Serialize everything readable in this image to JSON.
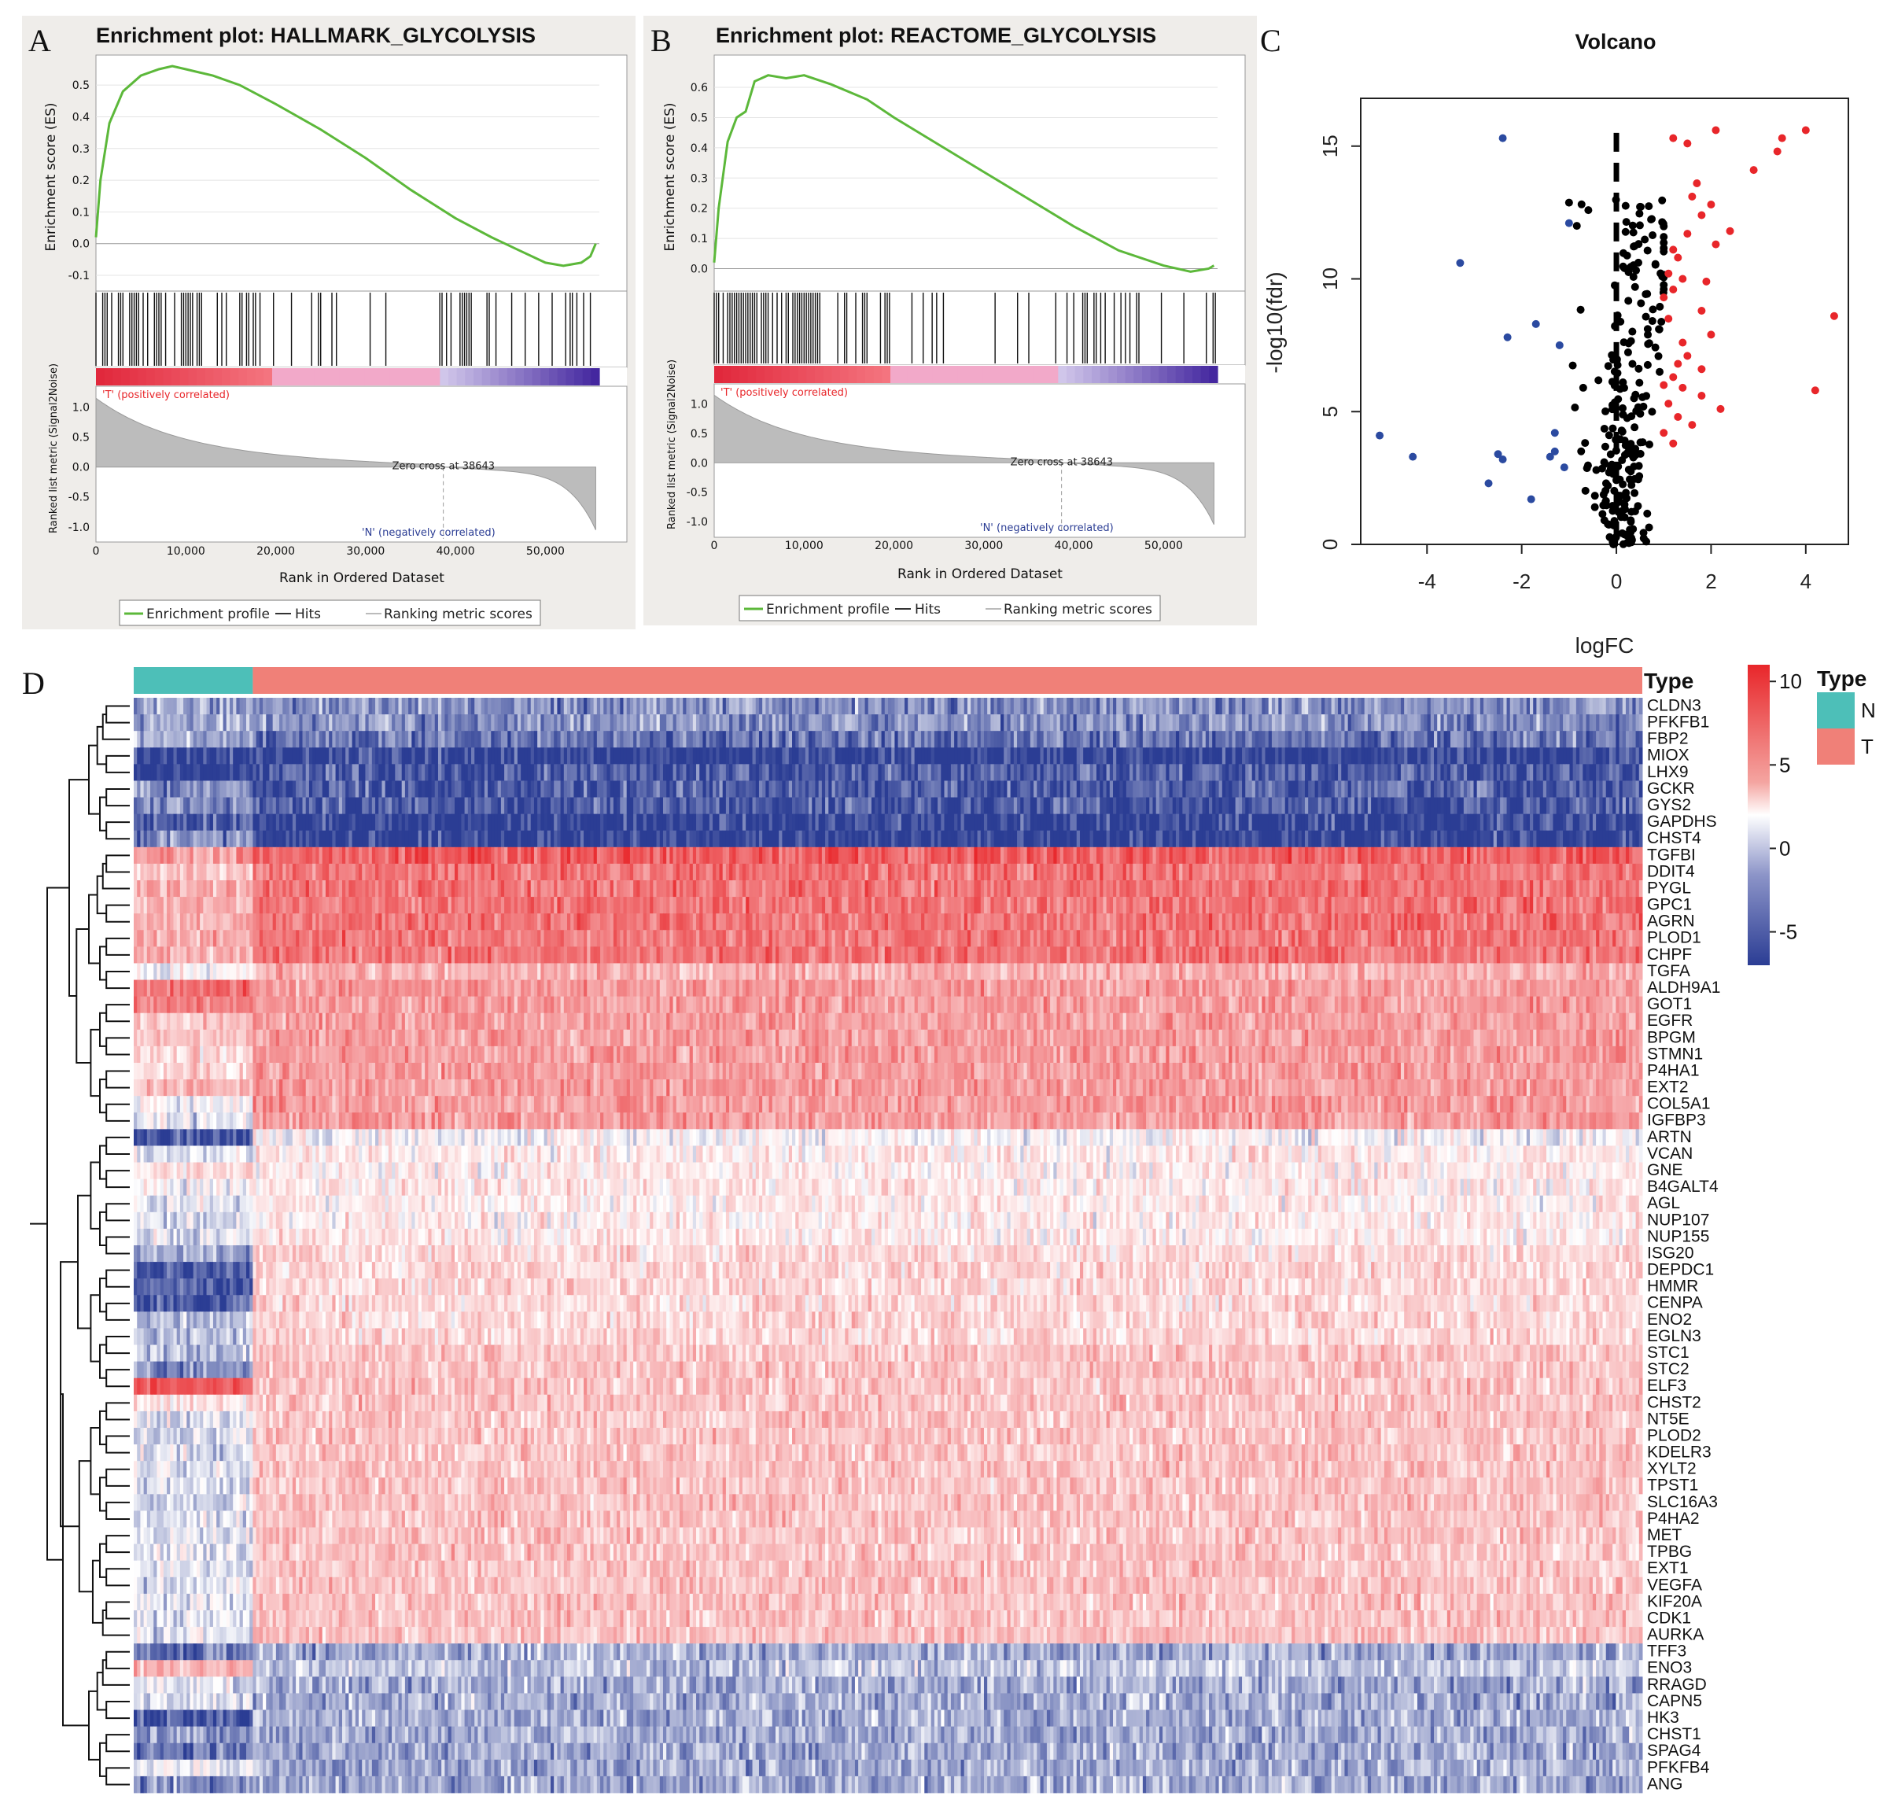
{
  "colors": {
    "enrich_line": "#5cb83a",
    "hit": "#111111",
    "panel_bg": "#efedea",
    "volcano_up": "#e8262a",
    "volcano_down": "#2b4aa0",
    "volcano_ns": "#000000",
    "heat_high": "#e8262a",
    "heat_mid": "#ffffff",
    "heat_low": "#2b3d94",
    "type_N": "#4dbfb8",
    "type_T": "#f08078"
  },
  "chart_data": [
    {
      "panel": "A",
      "type": "line",
      "title": "Enrichment plot: HALLMARK_GLYCOLYSIS",
      "ylabel_top": "Enrichment score (ES)",
      "ylabel_bottom": "Ranked list metric (Signal2Noise)",
      "xlabel": "Rank in Ordered Dataset",
      "es_yticks": [
        "0.5",
        "0.4",
        "0.3",
        "0.2",
        "0.1",
        "0.0",
        "-0.1"
      ],
      "es_ylim": [
        -0.1,
        0.55
      ],
      "metric_yticks": [
        "1.0",
        "0.5",
        "0.0",
        "-0.5",
        "-1.0"
      ],
      "metric_ylim": [
        -1.2,
        1.1
      ],
      "xticks": [
        "0",
        "10,000",
        "20,000",
        "30,000",
        "40,000",
        "50,000"
      ],
      "xlim": [
        0,
        56000
      ],
      "es_x": [
        0,
        500,
        1500,
        3000,
        5000,
        7000,
        8500,
        10000,
        13000,
        16000,
        20000,
        25000,
        30000,
        35000,
        40000,
        44000,
        47000,
        50000,
        52000,
        54000,
        55000,
        55600
      ],
      "es_y": [
        0.02,
        0.2,
        0.38,
        0.48,
        0.53,
        0.55,
        0.56,
        0.55,
        0.53,
        0.5,
        0.44,
        0.36,
        0.27,
        0.17,
        0.08,
        0.02,
        -0.02,
        -0.06,
        -0.07,
        -0.06,
        -0.04,
        0.0
      ],
      "pos_label": "'T' (positively correlated)",
      "neg_label": "'N' (negatively correlated)",
      "zero_cross_label": "Zero cross at 38643",
      "zero_cross": 38643,
      "legend": [
        "Enrichment profile",
        "Hits",
        "Ranking metric scores"
      ]
    },
    {
      "panel": "B",
      "type": "line",
      "title": "Enrichment plot: REACTOME_GLYCOLYSIS",
      "ylabel_top": "Enrichment score (ES)",
      "ylabel_bottom": "Ranked list metric (Signal2Noise)",
      "xlabel": "Rank in Ordered Dataset",
      "es_yticks": [
        "0.6",
        "0.5",
        "0.4",
        "0.3",
        "0.2",
        "0.1",
        "0.0"
      ],
      "es_ylim": [
        -0.03,
        0.66
      ],
      "metric_yticks": [
        "1.0",
        "0.5",
        "0.0",
        "-0.5",
        "-1.0"
      ],
      "metric_ylim": [
        -1.2,
        1.1
      ],
      "xticks": [
        "0",
        "10,000",
        "20,000",
        "30,000",
        "40,000",
        "50,000"
      ],
      "xlim": [
        0,
        56000
      ],
      "es_x": [
        0,
        500,
        1500,
        2500,
        3500,
        4500,
        6000,
        8000,
        10000,
        13000,
        17000,
        20000,
        25000,
        30000,
        35000,
        40000,
        45000,
        50000,
        53000,
        55000,
        55600
      ],
      "es_y": [
        0.02,
        0.2,
        0.42,
        0.5,
        0.52,
        0.62,
        0.64,
        0.63,
        0.64,
        0.61,
        0.56,
        0.5,
        0.41,
        0.32,
        0.23,
        0.14,
        0.06,
        0.01,
        -0.01,
        0.0,
        0.01
      ],
      "pos_label": "'T' (positively correlated)",
      "neg_label": "'N' (negatively correlated)",
      "zero_cross_label": "Zero cross at 38643",
      "zero_cross": 38643,
      "legend": [
        "Enrichment profile",
        "Hits",
        "Ranking metric scores"
      ]
    },
    {
      "panel": "C",
      "type": "scatter",
      "title": "Volcano",
      "xlabel": "logFC",
      "ylabel": "-log10(fdr)",
      "xticks": [
        "-4",
        "-2",
        "0",
        "2",
        "4"
      ],
      "yticks": [
        "0",
        "5",
        "10",
        "15"
      ],
      "xlim": [
        -5.4,
        4.9
      ],
      "ylim": [
        0,
        16.8
      ],
      "vline_x": 0,
      "up_points": [
        [
          1.2,
          15.3
        ],
        [
          1.5,
          15.1
        ],
        [
          2.1,
          15.6
        ],
        [
          3.5,
          15.3
        ],
        [
          4.0,
          15.6
        ],
        [
          3.4,
          14.8
        ],
        [
          2.9,
          14.1
        ],
        [
          1.7,
          13.6
        ],
        [
          1.6,
          13.1
        ],
        [
          2.0,
          12.8
        ],
        [
          1.8,
          12.4
        ],
        [
          2.4,
          11.8
        ],
        [
          2.1,
          11.3
        ],
        [
          1.5,
          11.7
        ],
        [
          1.2,
          11.1
        ],
        [
          1.3,
          10.8
        ],
        [
          1.1,
          10.2
        ],
        [
          1.4,
          10.0
        ],
        [
          1.9,
          9.9
        ],
        [
          1.2,
          9.6
        ],
        [
          1.0,
          9.3
        ],
        [
          1.8,
          8.8
        ],
        [
          1.1,
          8.5
        ],
        [
          2.0,
          7.9
        ],
        [
          1.4,
          7.6
        ],
        [
          4.6,
          8.6
        ],
        [
          1.5,
          7.1
        ],
        [
          1.3,
          6.8
        ],
        [
          1.8,
          6.6
        ],
        [
          1.2,
          6.3
        ],
        [
          1.0,
          6.0
        ],
        [
          1.4,
          5.9
        ],
        [
          1.8,
          5.6
        ],
        [
          4.2,
          5.8
        ],
        [
          1.1,
          5.3
        ],
        [
          1.3,
          4.8
        ],
        [
          1.0,
          4.2
        ],
        [
          1.2,
          3.8
        ],
        [
          1.6,
          4.5
        ],
        [
          2.2,
          5.1
        ]
      ],
      "down_points": [
        [
          -2.4,
          15.3
        ],
        [
          -1.0,
          12.1
        ],
        [
          -3.3,
          10.6
        ],
        [
          -1.7,
          8.3
        ],
        [
          -2.3,
          7.8
        ],
        [
          -1.2,
          7.5
        ],
        [
          -5.0,
          4.1
        ],
        [
          -4.3,
          3.3
        ],
        [
          -2.5,
          3.4
        ],
        [
          -2.4,
          3.2
        ],
        [
          -1.4,
          3.3
        ],
        [
          -1.3,
          4.2
        ],
        [
          -1.1,
          2.9
        ],
        [
          -1.3,
          3.5
        ],
        [
          -2.7,
          2.3
        ],
        [
          -1.8,
          1.7
        ]
      ],
      "ns_region": {
        "x_min": -1.0,
        "x_max": 1.0,
        "y_max": 13.0
      }
    },
    {
      "panel": "D",
      "type": "heatmap",
      "rows": [
        "CLDN3",
        "PFKFB1",
        "FBP2",
        "MIOX",
        "LHX9",
        "GCKR",
        "GYS2",
        "GAPDHS",
        "CHST4",
        "TGFBI",
        "DDIT4",
        "PYGL",
        "GPC1",
        "AGRN",
        "PLOD1",
        "CHPF",
        "TGFA",
        "ALDH9A1",
        "GOT1",
        "EGFR",
        "BPGM",
        "STMN1",
        "P4HA1",
        "EXT2",
        "COL5A1",
        "IGFBP3",
        "ARTN",
        "VCAN",
        "GNE",
        "B4GALT4",
        "AGL",
        "NUP107",
        "NUP155",
        "ISG20",
        "DEPDC1",
        "HMMR",
        "CENPA",
        "ENO2",
        "EGLN3",
        "STC1",
        "STC2",
        "ELF3",
        "CHST2",
        "NT5E",
        "PLOD2",
        "KDELR3",
        "XYLT2",
        "TPST1",
        "SLC16A3",
        "P4HA2",
        "MET",
        "TPBG",
        "EXT1",
        "VEGFA",
        "KIF20A",
        "CDK1",
        "AURKA",
        "TFF3",
        "ENO3",
        "RRAGD",
        "CAPN5",
        "HK3",
        "CHST1",
        "SPAG4",
        "PFKFB4",
        "ANG"
      ],
      "row_means_N": [
        -3,
        -3,
        -3,
        -7,
        -7,
        -4,
        -4,
        -6,
        -4,
        5,
        3,
        4,
        4,
        4,
        4,
        4,
        0,
        7,
        6,
        3,
        3,
        2,
        2,
        4,
        0,
        -1,
        -6,
        -1,
        2,
        0,
        -1,
        -1,
        -1,
        -3,
        -6,
        -6,
        -6,
        -2,
        -2,
        -2,
        -4,
        8,
        1,
        -1,
        -1,
        -1,
        -1,
        -1,
        -1,
        -1,
        -1,
        -1,
        -1,
        -1,
        -1,
        -1,
        -1,
        -5,
        4,
        -1,
        -1,
        -6,
        -4,
        -5,
        -1,
        -4
      ],
      "row_means_T": [
        -4,
        -4,
        -5,
        -7,
        -6,
        -6,
        -6,
        -7,
        -7,
        8,
        7,
        7,
        7,
        7,
        7,
        7,
        4,
        5,
        5,
        5,
        5,
        5,
        5,
        5,
        5,
        5,
        0,
        1,
        1,
        1,
        1,
        1,
        1,
        2,
        2,
        2,
        2,
        2,
        2,
        3,
        3,
        3,
        3,
        3,
        3,
        3,
        3,
        3,
        3,
        3,
        3,
        3,
        3,
        3,
        3,
        3,
        3,
        -3,
        -2,
        -3,
        -3,
        -3,
        -3,
        -3,
        -3,
        -3
      ],
      "type_legend_title": "Type",
      "type_labels": [
        "N",
        "T"
      ],
      "n_columns_N": 60,
      "n_columns_T": 600,
      "annotation_label": "Type",
      "colorbar_ticks": [
        "10",
        "5",
        "0",
        "-5"
      ],
      "colorbar_range": [
        -7,
        11
      ]
    }
  ],
  "panel_labels": {
    "A": "A",
    "B": "B",
    "C": "C",
    "D": "D"
  }
}
